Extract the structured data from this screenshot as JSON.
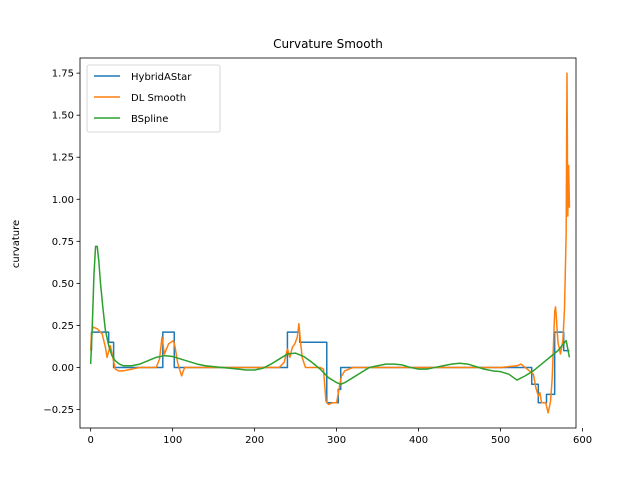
{
  "chart_data": {
    "type": "line",
    "title": "Curvature Smooth",
    "xlabel": "",
    "ylabel": "curvature",
    "xlim": [
      -13,
      592
    ],
    "ylim": [
      -0.36,
      1.84
    ],
    "x_ticks": [
      0,
      100,
      200,
      300,
      400,
      500,
      600
    ],
    "y_ticks": [
      -0.25,
      0.0,
      0.25,
      0.5,
      0.75,
      1.0,
      1.25,
      1.5,
      1.75
    ],
    "x_tick_labels": [
      "0",
      "100",
      "200",
      "300",
      "400",
      "500",
      "600"
    ],
    "y_tick_labels": [
      "−0.25",
      "0.00",
      "0.25",
      "0.50",
      "0.75",
      "1.00",
      "1.25",
      "1.50",
      "1.75"
    ],
    "grid": false,
    "legend_position": "top-left",
    "series": [
      {
        "name": "HybridAStar",
        "color": "#1f77b4",
        "x": [
          0,
          1,
          1,
          22,
          22,
          28,
          28,
          88,
          88,
          102,
          102,
          240,
          240,
          255,
          255,
          288,
          288,
          302,
          302,
          305,
          305,
          538,
          538,
          546,
          546,
          556,
          556,
          566,
          566,
          577,
          577,
          584
        ],
        "y": [
          0.1,
          0.1,
          0.21,
          0.21,
          0.15,
          0.15,
          0.0,
          0.0,
          0.21,
          0.21,
          0.0,
          0.0,
          0.21,
          0.21,
          0.15,
          0.15,
          -0.21,
          -0.21,
          -0.13,
          -0.13,
          0.0,
          0.0,
          -0.1,
          -0.1,
          -0.21,
          -0.21,
          -0.16,
          -0.16,
          0.21,
          0.21,
          0.1,
          0.1
        ]
      },
      {
        "name": "DL Smooth",
        "color": "#ff7f0e",
        "x": [
          0,
          1,
          3,
          8,
          14,
          18,
          20,
          24,
          27,
          30,
          34,
          40,
          50,
          60,
          80,
          84,
          87,
          90,
          95,
          98,
          101,
          103,
          106,
          109,
          111,
          113,
          115,
          120,
          150,
          200,
          230,
          236,
          240,
          243,
          246,
          249,
          252,
          254,
          256,
          258,
          262,
          270,
          280,
          284,
          287,
          290,
          295,
          300,
          304,
          306,
          310,
          320,
          400,
          500,
          520,
          525,
          530,
          535,
          540,
          543,
          546,
          548,
          550,
          555,
          558,
          561,
          563,
          565,
          566,
          567,
          568,
          570,
          573,
          576,
          578,
          580,
          581,
          582,
          583,
          584
        ],
        "y": [
          0.1,
          0.2,
          0.24,
          0.23,
          0.2,
          0.12,
          0.06,
          0.13,
          0.06,
          -0.01,
          -0.02,
          -0.02,
          -0.01,
          0.0,
          0.0,
          0.05,
          0.18,
          0.08,
          0.14,
          0.15,
          0.16,
          0.12,
          0.03,
          -0.02,
          -0.05,
          -0.02,
          0.0,
          0.0,
          0.0,
          0.0,
          0.0,
          0.03,
          0.11,
          0.06,
          0.12,
          0.14,
          0.18,
          0.26,
          0.15,
          0.06,
          0.0,
          0.0,
          0.0,
          -0.01,
          -0.2,
          -0.22,
          -0.21,
          -0.21,
          -0.1,
          -0.05,
          -0.02,
          0.0,
          0.0,
          0.0,
          0.01,
          0.02,
          0.0,
          -0.02,
          -0.04,
          -0.12,
          -0.17,
          -0.15,
          -0.21,
          -0.21,
          -0.27,
          -0.2,
          -0.06,
          0.2,
          0.33,
          0.36,
          0.3,
          0.15,
          0.08,
          0.16,
          0.35,
          0.8,
          1.75,
          0.9,
          1.2,
          0.95
        ]
      },
      {
        "name": "BSpline",
        "color": "#2ca02c",
        "x": [
          0,
          2,
          4,
          6,
          8,
          10,
          12,
          15,
          18,
          22,
          26,
          30,
          35,
          40,
          50,
          60,
          70,
          80,
          90,
          100,
          110,
          120,
          130,
          140,
          150,
          160,
          170,
          180,
          190,
          200,
          210,
          220,
          230,
          240,
          250,
          260,
          270,
          280,
          290,
          300,
          305,
          310,
          320,
          330,
          340,
          350,
          360,
          370,
          380,
          390,
          400,
          410,
          420,
          430,
          440,
          450,
          460,
          470,
          480,
          490,
          500,
          510,
          520,
          530,
          540,
          545,
          550,
          555,
          560,
          565,
          570,
          575,
          580,
          584
        ],
        "y": [
          0.02,
          0.25,
          0.55,
          0.72,
          0.72,
          0.63,
          0.5,
          0.35,
          0.22,
          0.13,
          0.07,
          0.04,
          0.02,
          0.01,
          0.01,
          0.02,
          0.04,
          0.06,
          0.07,
          0.065,
          0.05,
          0.035,
          0.02,
          0.01,
          0.005,
          0.0,
          -0.005,
          -0.01,
          -0.015,
          -0.015,
          -0.005,
          0.02,
          0.05,
          0.08,
          0.085,
          0.065,
          0.03,
          -0.01,
          -0.06,
          -0.09,
          -0.1,
          -0.09,
          -0.06,
          -0.03,
          0.0,
          0.01,
          0.02,
          0.02,
          0.015,
          0.0,
          -0.01,
          -0.01,
          0.0,
          0.01,
          0.02,
          0.025,
          0.02,
          0.005,
          -0.01,
          -0.02,
          -0.025,
          -0.04,
          -0.075,
          -0.05,
          -0.02,
          0.0,
          0.02,
          0.04,
          0.06,
          0.08,
          0.1,
          0.13,
          0.16,
          0.06
        ]
      }
    ]
  }
}
